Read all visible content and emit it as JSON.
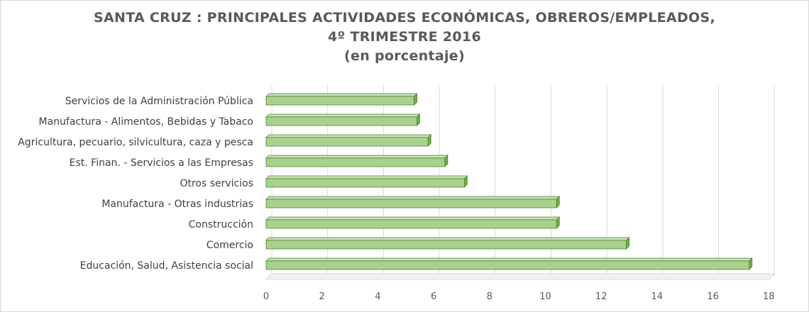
{
  "chart_data": {
    "type": "bar",
    "orientation": "horizontal",
    "title_lines": [
      "SANTA CRUZ : PRINCIPALES  ACTIVIDADES  ECONÓMICAS,  OBREROS/EMPLEADOS,",
      "4º TRIMESTRE  2016",
      "(en porcentaje)"
    ],
    "categories": [
      "Servicios de la Administración Pública",
      "Manufactura - Alimentos, Bebidas y Tabaco",
      "Agricultura, pecuario, silvicultura, caza y pesca",
      "Est. Finan. - Servicios a las Empresas",
      "Otros servicios",
      "Manufactura - Otras industrias",
      "Construcción",
      "Comercio",
      "Educación, Salud, Asistencia social"
    ],
    "values": [
      5.3,
      5.4,
      5.8,
      6.4,
      7.1,
      10.4,
      10.4,
      12.9,
      17.3
    ],
    "xlim": [
      0,
      18
    ],
    "xticks": [
      "0",
      "2",
      "4",
      "6",
      "8",
      "10",
      "12",
      "14",
      "16",
      "18"
    ],
    "grid": true,
    "colors": {
      "bar_face": "#a9d18e",
      "bar_top": "#c5e0b4",
      "bar_side": "#70ad47",
      "bar_edge": "#548235",
      "grid": "#d9d9d9",
      "title": "#595959"
    }
  }
}
